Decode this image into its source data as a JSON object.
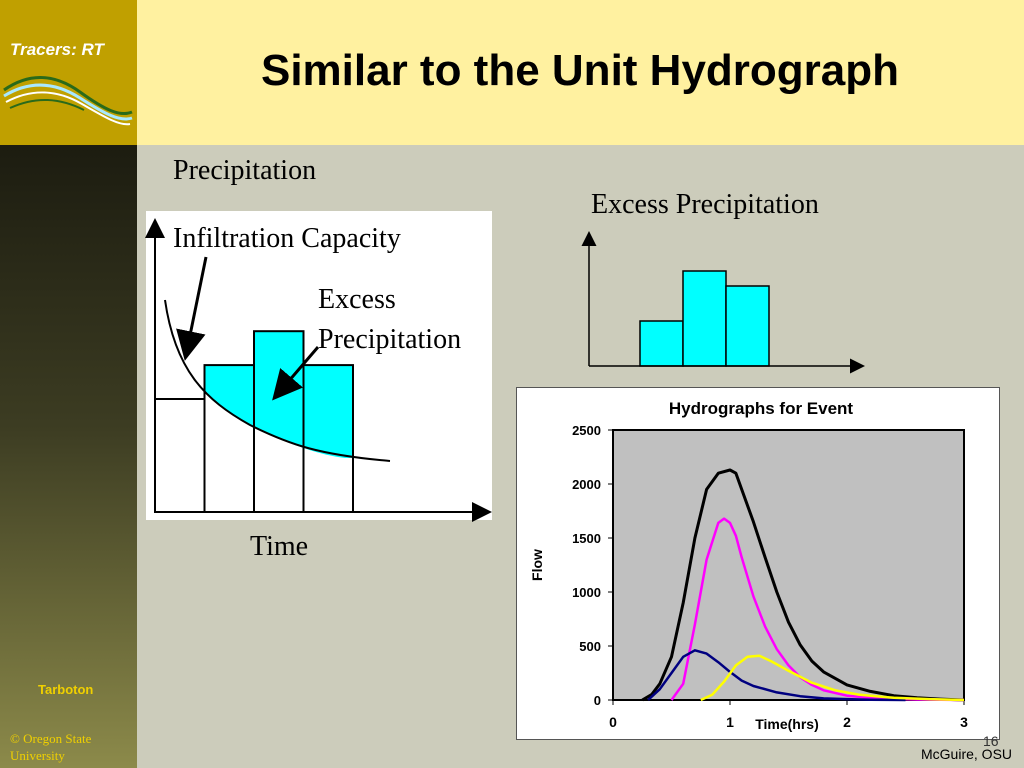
{
  "header": {
    "logo_text": "Tracers: RT",
    "title": "Similar to the Unit Hydrograph"
  },
  "sidebar": {
    "author": "Tarboton",
    "copyright": "© Oregon State University"
  },
  "left_diagram": {
    "precipitation_label": "Precipitation",
    "infiltration_label": "Infiltration Capacity",
    "excess_line1": "Excess",
    "excess_line2": "Precipitation",
    "time_label": "Time",
    "bars": [
      1.0,
      1.3,
      1.6,
      1.3
    ],
    "fill_color": "#00ffff"
  },
  "right_diagram": {
    "label": "Excess Precipitation",
    "bars": [
      0.9,
      1.9,
      1.6
    ],
    "fill_color": "#00ffff"
  },
  "chart_data": {
    "type": "line",
    "title": "Hydrographs for Event",
    "xlabel": "Time(hrs)",
    "ylabel": "Flow",
    "xlim": [
      0,
      3
    ],
    "ylim": [
      0,
      2500
    ],
    "xticks": [
      "0",
      "1",
      "2",
      "3"
    ],
    "yticks": [
      "0",
      "500",
      "1000",
      "1500",
      "2000",
      "2500"
    ],
    "grid": false,
    "legend": "none",
    "plot_background": "#c0c0c0",
    "series": [
      {
        "color": "#000000",
        "x": [
          0.25,
          0.33,
          0.4,
          0.5,
          0.6,
          0.7,
          0.8,
          0.9,
          1.0,
          1.05,
          1.1,
          1.2,
          1.3,
          1.4,
          1.5,
          1.6,
          1.7,
          1.8,
          2.0,
          2.2,
          2.4,
          2.6,
          2.8,
          3.0
        ],
        "y": [
          0,
          50,
          150,
          400,
          900,
          1500,
          1950,
          2100,
          2130,
          2100,
          1950,
          1650,
          1320,
          1000,
          720,
          510,
          360,
          260,
          140,
          80,
          40,
          20,
          8,
          0
        ]
      },
      {
        "color": "#ff00ff",
        "x": [
          0.5,
          0.6,
          0.7,
          0.8,
          0.9,
          0.95,
          1.0,
          1.05,
          1.1,
          1.2,
          1.3,
          1.4,
          1.5,
          1.6,
          1.7,
          1.8,
          2.0,
          2.2,
          2.4,
          2.6,
          2.8,
          3.0
        ],
        "y": [
          0,
          150,
          700,
          1300,
          1640,
          1680,
          1640,
          1520,
          1320,
          960,
          680,
          470,
          320,
          210,
          140,
          90,
          40,
          20,
          10,
          5,
          2,
          0
        ]
      },
      {
        "color": "#000080",
        "x": [
          0.3,
          0.4,
          0.5,
          0.6,
          0.7,
          0.8,
          0.9,
          1.0,
          1.1,
          1.2,
          1.4,
          1.6,
          1.8,
          2.0,
          2.2,
          2.5
        ],
        "y": [
          0,
          100,
          250,
          400,
          460,
          430,
          350,
          260,
          180,
          130,
          70,
          35,
          15,
          8,
          3,
          0
        ]
      },
      {
        "color": "#ffff00",
        "x": [
          0.75,
          0.85,
          0.95,
          1.05,
          1.15,
          1.25,
          1.35,
          1.5,
          1.7,
          1.9,
          2.1,
          2.4,
          2.7,
          3.0
        ],
        "y": [
          0,
          50,
          170,
          320,
          400,
          410,
          360,
          270,
          160,
          90,
          50,
          20,
          8,
          0
        ]
      }
    ]
  },
  "footer": {
    "page_number": "16",
    "credit": "McGuire, OSU"
  }
}
